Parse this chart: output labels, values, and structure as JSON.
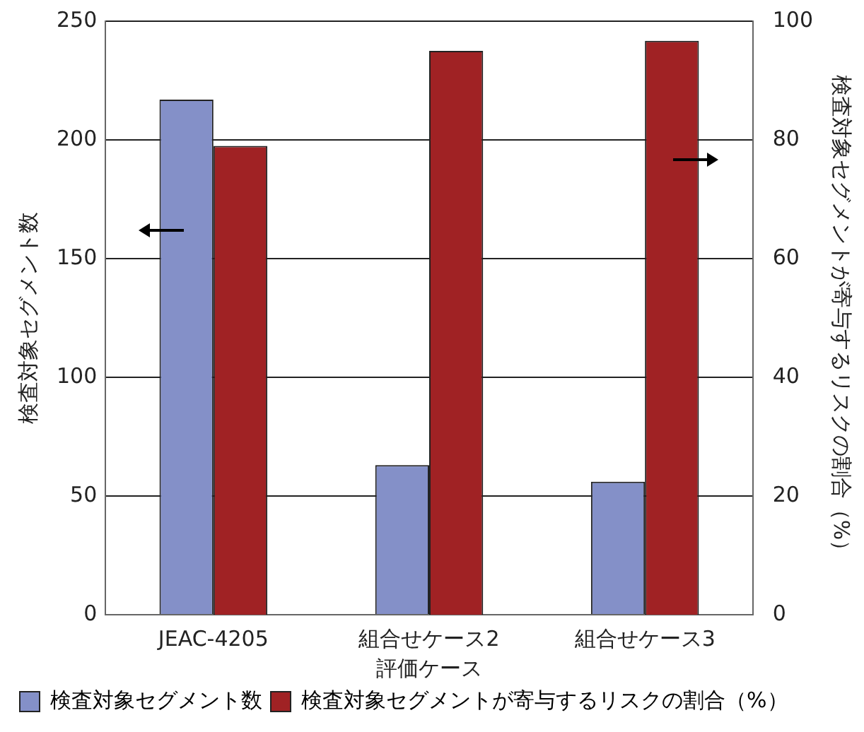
{
  "chart_data": {
    "type": "bar",
    "xlabel": "評価ケース",
    "ylabel": "検査対象セグメント数",
    "y2label": "検査対象セグメントが寄与するリスクの割合（%）",
    "categories": [
      "JEAC-4205",
      "組合せケース2",
      "組合せケース3"
    ],
    "series": [
      {
        "name": "検査対象セグメント数",
        "color": "#8490c8",
        "values": [
          217,
          63,
          56
        ]
      },
      {
        "name": "検査対象セグメントが寄与するリスクの割合（%）",
        "color": "#a02224",
        "values": [
          79,
          95,
          96.7
        ],
        "axis": "y2"
      }
    ],
    "ylim": [
      0,
      250
    ],
    "yticks": [
      0,
      50,
      100,
      150,
      200,
      250
    ],
    "y2lim": [
      0,
      100
    ],
    "y2ticks": [
      0,
      20,
      40,
      60,
      80,
      100
    ],
    "grid": "y",
    "legend": "bottom"
  }
}
